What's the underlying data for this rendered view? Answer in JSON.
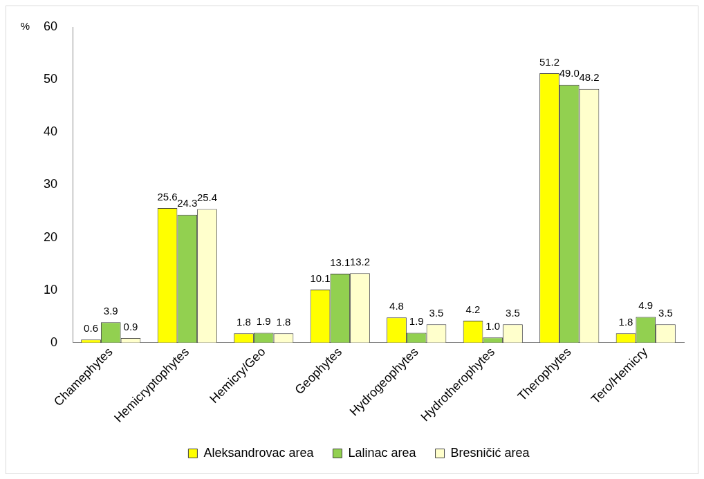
{
  "chart_data": {
    "type": "bar",
    "ylabel": "%",
    "categories": [
      "Chamephytes",
      "Hemicryptophytes",
      "Hemicry/Geo",
      "Geophytes",
      "Hydrogeophytes",
      "Hydrotherophytes",
      "Therophytes",
      "Tero/Hemicry"
    ],
    "series": [
      {
        "name": "Aleksandrovac area",
        "color": "#ffff00",
        "values": [
          0.6,
          25.6,
          1.8,
          10.1,
          4.8,
          4.2,
          51.2,
          1.8
        ],
        "value_labels": [
          "0.6",
          "25.6",
          "1.8",
          "10.1",
          "4.8",
          "4.2",
          "51.2",
          "1.8"
        ]
      },
      {
        "name": "Lalinac area",
        "color": "#92d050",
        "values": [
          3.9,
          24.3,
          1.9,
          13.1,
          1.9,
          1.0,
          49.0,
          4.9
        ],
        "value_labels": [
          "3.9",
          "24.3",
          "1.9",
          "13.1",
          "1.9",
          "1.0",
          "49.0",
          "4.9"
        ]
      },
      {
        "name": "Bresničić area",
        "color": "#ffffcc",
        "values": [
          0.9,
          25.4,
          1.8,
          13.2,
          3.5,
          3.5,
          48.2,
          3.5
        ],
        "value_labels": [
          "0.9",
          "25.4",
          "1.8",
          "13.2",
          "3.5",
          "3.5",
          "48.2",
          "3.5"
        ]
      }
    ],
    "ylim": [
      0,
      60
    ],
    "yticks": [
      0,
      10,
      20,
      30,
      40,
      50,
      60
    ],
    "grid": false,
    "legend": "bottom"
  }
}
